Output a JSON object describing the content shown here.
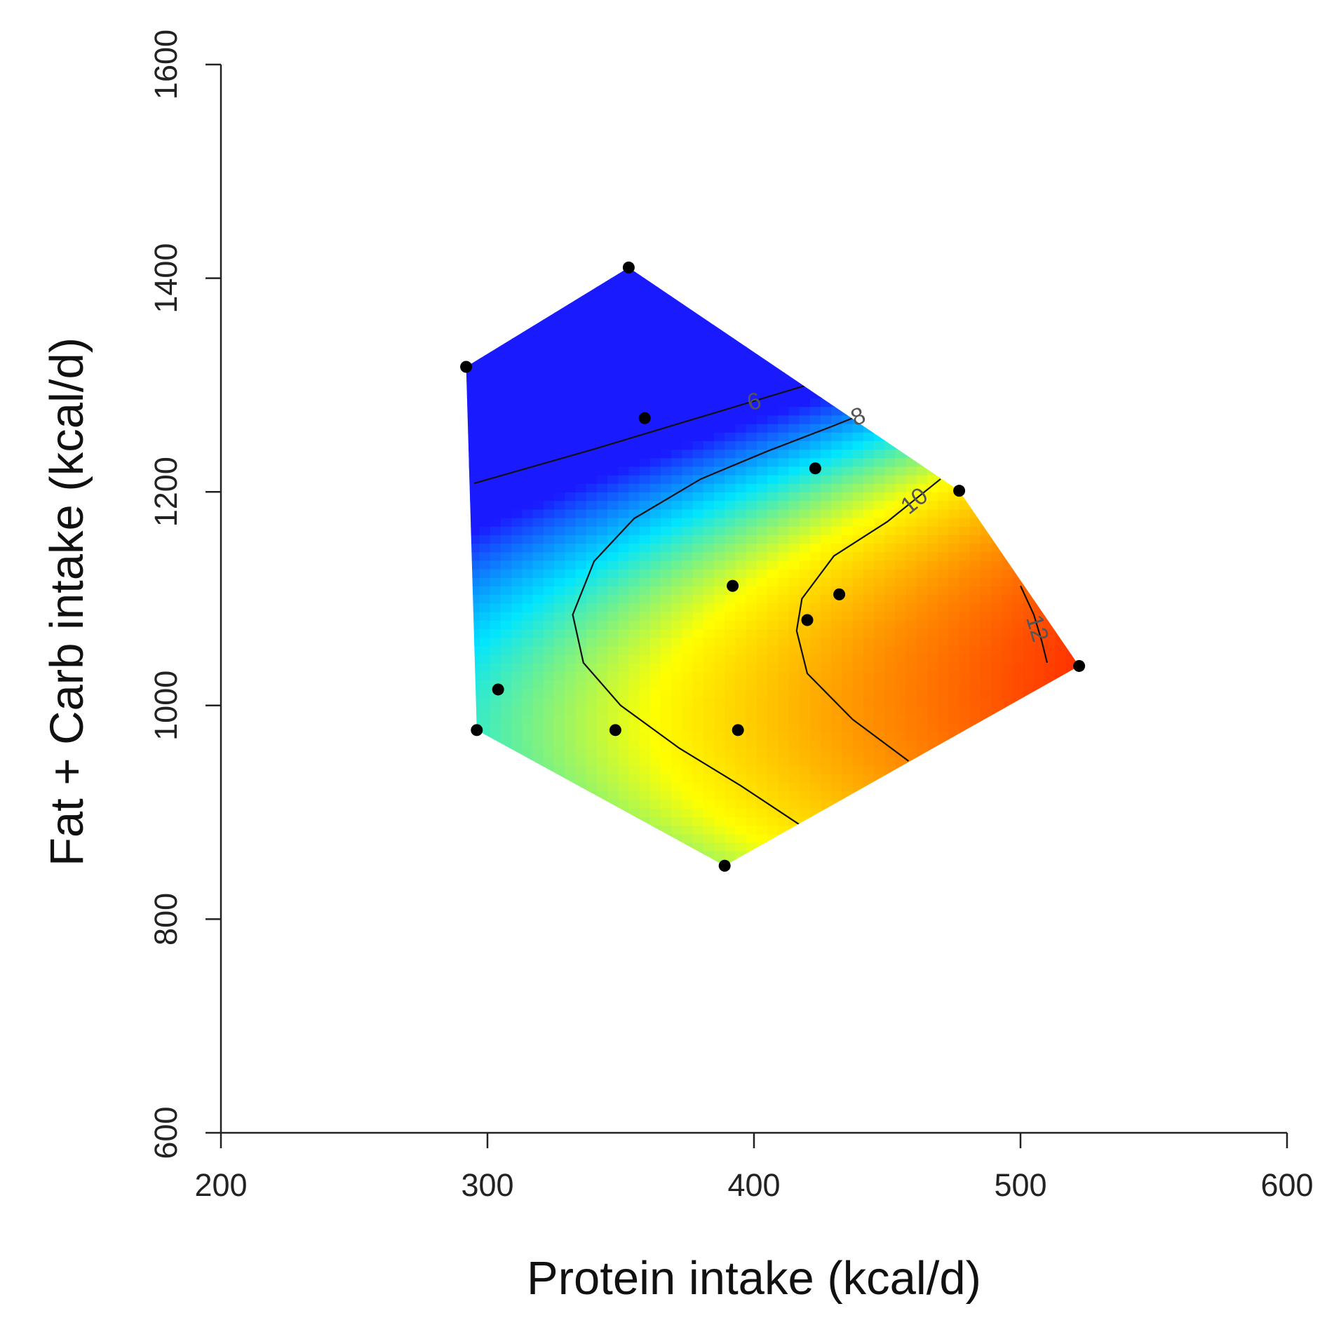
{
  "chart_data": {
    "type": "heatmap",
    "subtype": "response-surface-contour",
    "title": "",
    "xlabel": "Protein intake (kcal/d)",
    "ylabel": "Fat + Carb intake (kcal/d)",
    "xlim": [
      200,
      600
    ],
    "ylim": [
      600,
      1600
    ],
    "x_ticks": [
      "200",
      "300",
      "400",
      "500",
      "600"
    ],
    "y_ticks": [
      "600",
      "800",
      "1000",
      "1200",
      "1400",
      "1600"
    ],
    "grid": false,
    "colormap": [
      "#1a1aff",
      "#00e5ff",
      "#ffff00",
      "#ff8c00",
      "#ff2a00"
    ],
    "surface_range": [
      4.5,
      13
    ],
    "hull_polygon": [
      [
        353,
        1410
      ],
      [
        477,
        1201
      ],
      [
        522,
        1037
      ],
      [
        389,
        850
      ],
      [
        296,
        977
      ],
      [
        292,
        1317
      ]
    ],
    "contours": [
      {
        "level": 6,
        "label": "6",
        "points": [
          [
            295,
            1208
          ],
          [
            340,
            1240
          ],
          [
            380,
            1270
          ],
          [
            420,
            1300
          ],
          [
            448,
            1325
          ]
        ]
      },
      {
        "level": 8,
        "label": "8",
        "points": [
          [
            448,
            1280
          ],
          [
            430,
            1262
          ],
          [
            405,
            1238
          ],
          [
            380,
            1212
          ],
          [
            355,
            1175
          ],
          [
            340,
            1135
          ],
          [
            332,
            1085
          ],
          [
            336,
            1040
          ],
          [
            350,
            1000
          ],
          [
            372,
            960
          ],
          [
            395,
            925
          ],
          [
            418,
            887
          ]
        ]
      },
      {
        "level": 10,
        "label": "10",
        "points": [
          [
            470,
            1212
          ],
          [
            450,
            1172
          ],
          [
            430,
            1140
          ],
          [
            418,
            1100
          ],
          [
            416,
            1070
          ],
          [
            420,
            1030
          ],
          [
            437,
            987
          ],
          [
            458,
            948
          ]
        ]
      },
      {
        "level": 12,
        "label": "12",
        "points": [
          [
            500,
            1112
          ],
          [
            505,
            1085
          ],
          [
            508,
            1060
          ],
          [
            510,
            1040
          ]
        ]
      }
    ],
    "points": [
      {
        "x": 353,
        "y": 1410
      },
      {
        "x": 292,
        "y": 1317
      },
      {
        "x": 359,
        "y": 1269
      },
      {
        "x": 423,
        "y": 1222
      },
      {
        "x": 477,
        "y": 1201
      },
      {
        "x": 392,
        "y": 1112
      },
      {
        "x": 432,
        "y": 1104
      },
      {
        "x": 420,
        "y": 1080
      },
      {
        "x": 522,
        "y": 1037
      },
      {
        "x": 304,
        "y": 1015
      },
      {
        "x": 296,
        "y": 977
      },
      {
        "x": 348,
        "y": 977
      },
      {
        "x": 394,
        "y": 977
      },
      {
        "x": 389,
        "y": 850
      }
    ]
  }
}
